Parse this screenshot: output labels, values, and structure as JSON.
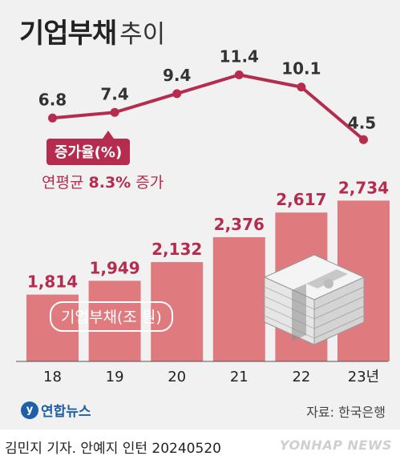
{
  "title": {
    "main": "기업부채",
    "sub": "추이"
  },
  "legend": {
    "rate_label": "증가율(%)",
    "avg_prefix": "연평균",
    "avg_value": "8.3%",
    "avg_suffix": "증가",
    "bar_label": "기업부채(조 원)"
  },
  "source": {
    "logo_text": "연합뉴스",
    "text": "자료: 한국은행"
  },
  "footer": {
    "credit": "김민지 기자. 안예지 인턴  20240520",
    "watermark": "YONHAP NEWS"
  },
  "colors": {
    "bar": "#df7b7e",
    "line": "#b52c4f",
    "bar_label": "#b52c4f",
    "title": "#222222"
  },
  "icons": [
    "money-stack-icon",
    "yonhap-logo-icon"
  ],
  "chart_data": {
    "type": "bar",
    "categories": [
      "18",
      "19",
      "20",
      "21",
      "22",
      "23년"
    ],
    "series": [
      {
        "name": "기업부채(조 원)",
        "type": "bar",
        "values": [
          1814,
          1949,
          2132,
          2376,
          2617,
          2734
        ],
        "labels": [
          "1,814",
          "1,949",
          "2,132",
          "2,376",
          "2,617",
          "2,734"
        ]
      },
      {
        "name": "증가율(%)",
        "type": "line",
        "values": [
          6.8,
          7.4,
          9.4,
          11.4,
          10.1,
          4.5
        ],
        "labels": [
          "6.8",
          "7.4",
          "9.4",
          "11.4",
          "10.1",
          "4.5"
        ]
      }
    ],
    "annotation": "연평균 8.3% 증가",
    "grid": false
  }
}
